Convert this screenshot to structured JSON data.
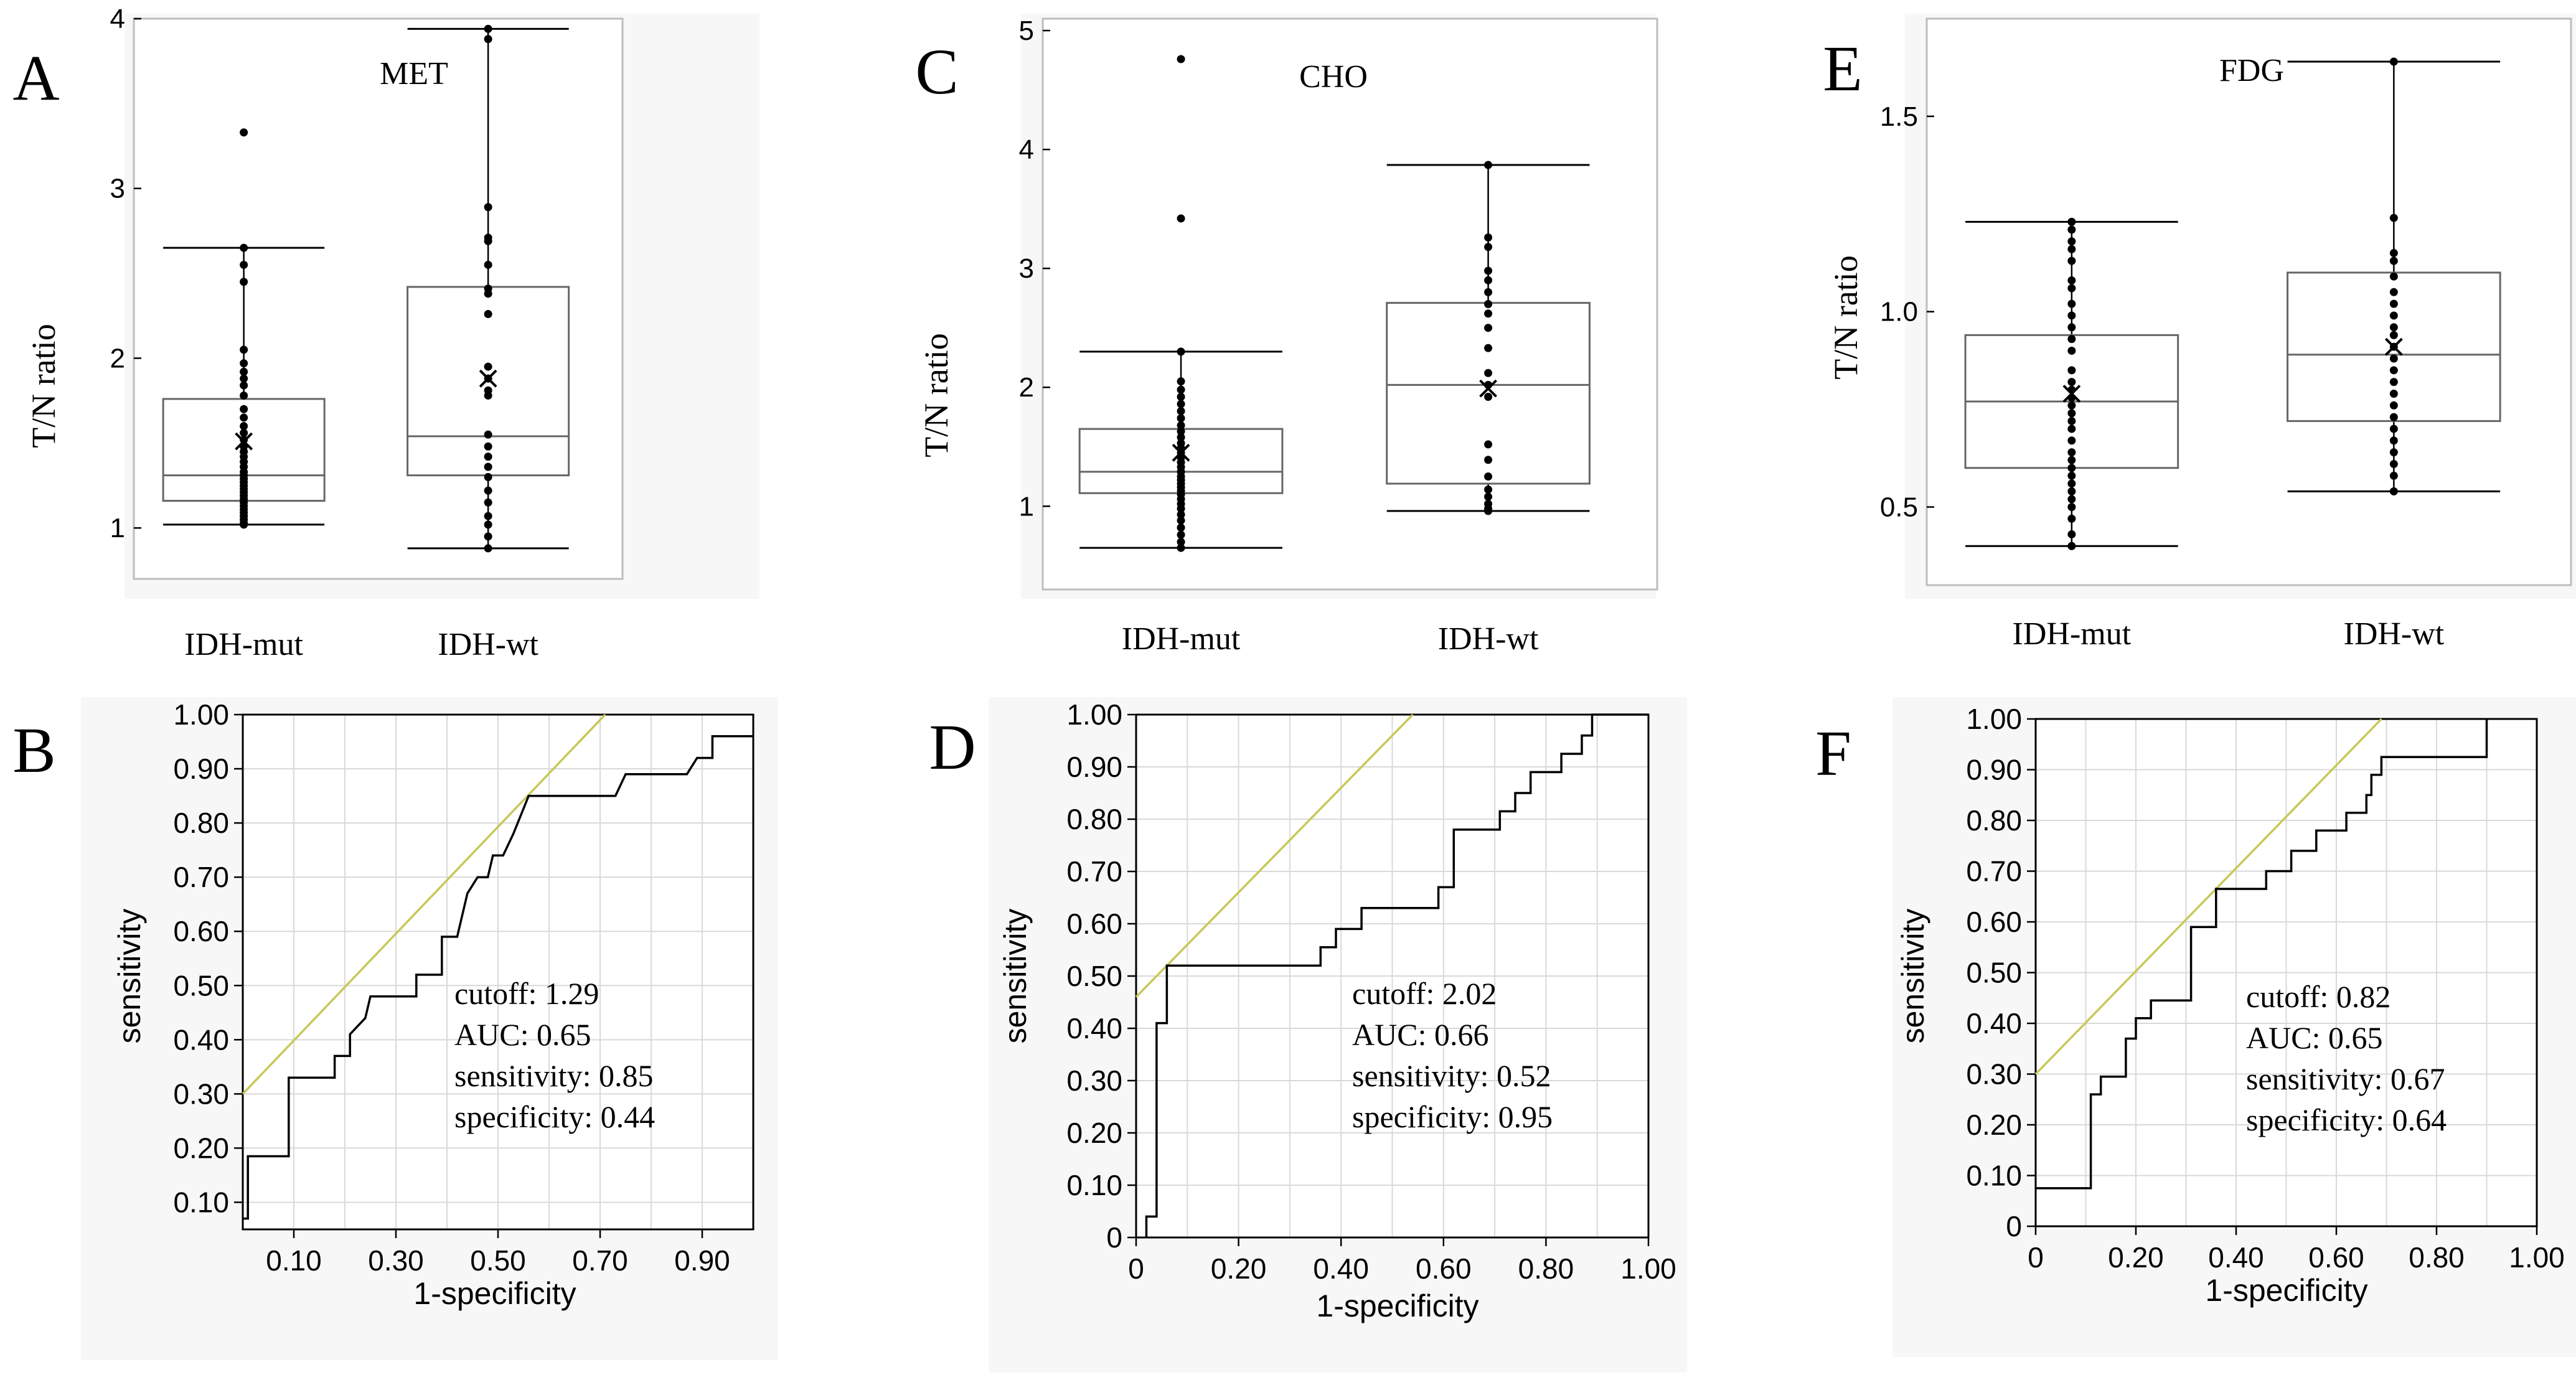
{
  "colors": {
    "panel_bg": "#f7f7f7",
    "plot_bg": "#ffffff",
    "frame": "#bdbdbd",
    "grid": "#d9d9d9",
    "ink": "#000000",
    "reference_line": "#c8c85a",
    "box_frame": "#666666"
  },
  "chart_data": [
    {
      "panel": "A",
      "type": "box",
      "title": "MET",
      "ylabel": "T/N ratio",
      "categories": [
        "IDH-mut",
        "IDH-wt"
      ],
      "ylim": [
        0.7,
        4.0
      ],
      "yticks": [
        "1",
        "2",
        "3",
        "4"
      ],
      "boxes": [
        {
          "name": "IDH-mut",
          "whisker_low": 1.02,
          "q1": 1.16,
          "median": 1.31,
          "q3": 1.76,
          "whisker_high": 2.65,
          "mean": 1.51,
          "points": [
            3.33,
            2.65,
            2.55,
            2.45,
            2.05,
            1.97,
            1.92,
            1.88,
            1.84,
            1.78,
            1.7,
            1.65,
            1.6,
            1.56,
            1.52,
            1.48,
            1.45,
            1.42,
            1.39,
            1.36,
            1.33,
            1.31,
            1.29,
            1.27,
            1.25,
            1.23,
            1.21,
            1.19,
            1.17,
            1.15,
            1.13,
            1.11,
            1.09,
            1.07,
            1.05,
            1.03,
            1.02
          ]
        },
        {
          "name": "IDH-wt",
          "whisker_low": 0.88,
          "q1": 1.31,
          "median": 1.54,
          "q3": 2.42,
          "whisker_high": 3.94,
          "mean": 1.88,
          "points": [
            3.94,
            3.88,
            2.89,
            2.71,
            2.69,
            2.55,
            2.41,
            2.38,
            2.26,
            1.95,
            1.88,
            1.81,
            1.78,
            1.55,
            1.48,
            1.42,
            1.36,
            1.3,
            1.22,
            1.15,
            1.07,
            1.02,
            0.95,
            0.88
          ]
        }
      ]
    },
    {
      "panel": "C",
      "type": "box",
      "title": "CHO",
      "ylabel": "T/N ratio",
      "categories": [
        "IDH-mut",
        "IDH-wt"
      ],
      "ylim": [
        0.3,
        5.1
      ],
      "yticks": [
        "1",
        "2",
        "3",
        "4",
        "5"
      ],
      "boxes": [
        {
          "name": "IDH-mut",
          "whisker_low": 0.65,
          "q1": 1.11,
          "median": 1.29,
          "q3": 1.65,
          "whisker_high": 2.3,
          "mean": 1.45,
          "points": [
            4.76,
            3.42,
            2.3,
            2.05,
            1.98,
            1.92,
            1.86,
            1.8,
            1.74,
            1.68,
            1.63,
            1.58,
            1.53,
            1.49,
            1.45,
            1.41,
            1.37,
            1.33,
            1.29,
            1.25,
            1.22,
            1.19,
            1.16,
            1.13,
            1.1,
            1.06,
            1.02,
            0.98,
            0.93,
            0.88,
            0.82,
            0.76,
            0.7,
            0.65
          ]
        },
        {
          "name": "IDH-wt",
          "whisker_low": 0.96,
          "q1": 1.19,
          "median": 2.02,
          "q3": 2.71,
          "whisker_high": 3.87,
          "mean": 1.99,
          "points": [
            3.87,
            3.26,
            3.18,
            2.98,
            2.9,
            2.8,
            2.7,
            2.62,
            2.5,
            2.33,
            2.12,
            2.02,
            1.92,
            1.52,
            1.39,
            1.25,
            1.14,
            1.08,
            1.02,
            0.98,
            0.96
          ]
        }
      ]
    },
    {
      "panel": "E",
      "type": "box",
      "title": "FDG",
      "ylabel": "T/N ratio",
      "categories": [
        "IDH-mut",
        "IDH-wt"
      ],
      "ylim": [
        0.3,
        1.75
      ],
      "yticks": [
        "0.5",
        "1.0",
        "1.5"
      ],
      "boxes": [
        {
          "name": "IDH-mut",
          "whisker_low": 0.4,
          "q1": 0.6,
          "median": 0.77,
          "q3": 0.94,
          "whisker_high": 1.23,
          "mean": 0.79,
          "points": [
            1.23,
            1.21,
            1.18,
            1.16,
            1.13,
            1.08,
            1.06,
            1.02,
            0.99,
            0.96,
            0.93,
            0.9,
            0.85,
            0.82,
            0.8,
            0.78,
            0.76,
            0.74,
            0.72,
            0.7,
            0.67,
            0.64,
            0.62,
            0.6,
            0.58,
            0.56,
            0.54,
            0.52,
            0.5,
            0.47,
            0.43,
            0.4
          ]
        },
        {
          "name": "IDH-wt",
          "whisker_low": 0.54,
          "q1": 0.72,
          "median": 0.89,
          "q3": 1.1,
          "whisker_high": 1.64,
          "mean": 0.91,
          "points": [
            1.64,
            1.24,
            1.15,
            1.13,
            1.09,
            1.05,
            1.02,
            0.99,
            0.96,
            0.94,
            0.91,
            0.88,
            0.85,
            0.82,
            0.79,
            0.76,
            0.73,
            0.7,
            0.67,
            0.64,
            0.61,
            0.58,
            0.54
          ]
        }
      ]
    },
    {
      "panel": "B",
      "type": "line",
      "xlabel": "1-specificity",
      "ylabel": "sensitivity",
      "xlim": [
        0,
        1
      ],
      "ylim": [
        0.05,
        1.0
      ],
      "xticks": [
        0.1,
        0.3,
        0.5,
        0.7,
        0.9
      ],
      "xtick_labels": [
        "0.10",
        "0.30",
        "0.50",
        "0.70",
        "0.90"
      ],
      "yticks": [
        0.1,
        0.2,
        0.3,
        0.4,
        0.5,
        0.6,
        0.7,
        0.8,
        0.9,
        1.0
      ],
      "ytick_labels": [
        "0.10",
        "0.20",
        "0.30",
        "0.40",
        "0.50",
        "0.60",
        "0.70",
        "0.80",
        "0.90",
        "1.00"
      ],
      "reference_line": [
        [
          0.0,
          0.3
        ],
        [
          0.71,
          1.0
        ]
      ],
      "roc": [
        [
          0.0,
          0.07
        ],
        [
          0.01,
          0.07
        ],
        [
          0.01,
          0.185
        ],
        [
          0.09,
          0.185
        ],
        [
          0.09,
          0.33
        ],
        [
          0.18,
          0.33
        ],
        [
          0.18,
          0.37
        ],
        [
          0.21,
          0.37
        ],
        [
          0.21,
          0.41
        ],
        [
          0.24,
          0.44
        ],
        [
          0.25,
          0.48
        ],
        [
          0.34,
          0.48
        ],
        [
          0.34,
          0.52
        ],
        [
          0.39,
          0.52
        ],
        [
          0.39,
          0.59
        ],
        [
          0.42,
          0.59
        ],
        [
          0.43,
          0.63
        ],
        [
          0.44,
          0.67
        ],
        [
          0.46,
          0.7
        ],
        [
          0.48,
          0.7
        ],
        [
          0.49,
          0.74
        ],
        [
          0.51,
          0.74
        ],
        [
          0.53,
          0.78
        ],
        [
          0.56,
          0.85
        ],
        [
          0.73,
          0.85
        ],
        [
          0.75,
          0.89
        ],
        [
          0.87,
          0.89
        ],
        [
          0.89,
          0.92
        ],
        [
          0.92,
          0.92
        ],
        [
          0.92,
          0.96
        ],
        [
          1.0,
          0.96
        ]
      ],
      "annotations": [
        "cutoff: 1.29",
        "AUC: 0.65",
        "sensitivity: 0.85",
        "specificity: 0.44"
      ]
    },
    {
      "panel": "D",
      "type": "line",
      "xlabel": "1-specificity",
      "ylabel": "sensitivity",
      "xlim": [
        0,
        1
      ],
      "ylim": [
        0,
        1
      ],
      "xticks": [
        0,
        0.2,
        0.4,
        0.6,
        0.8,
        1.0
      ],
      "xtick_labels": [
        "0",
        "0.20",
        "0.40",
        "0.60",
        "0.80",
        "1.00"
      ],
      "yticks": [
        0,
        0.1,
        0.2,
        0.3,
        0.4,
        0.5,
        0.6,
        0.7,
        0.8,
        0.9,
        1.0
      ],
      "ytick_labels": [
        "0",
        "0.10",
        "0.20",
        "0.30",
        "0.40",
        "0.50",
        "0.60",
        "0.70",
        "0.80",
        "0.90",
        "1.00"
      ],
      "reference_line": [
        [
          0.0,
          0.46
        ],
        [
          0.54,
          1.0
        ]
      ],
      "roc": [
        [
          0.02,
          0.0
        ],
        [
          0.02,
          0.04
        ],
        [
          0.04,
          0.04
        ],
        [
          0.04,
          0.41
        ],
        [
          0.06,
          0.41
        ],
        [
          0.06,
          0.52
        ],
        [
          0.36,
          0.52
        ],
        [
          0.36,
          0.555
        ],
        [
          0.39,
          0.555
        ],
        [
          0.39,
          0.59
        ],
        [
          0.44,
          0.59
        ],
        [
          0.44,
          0.63
        ],
        [
          0.59,
          0.63
        ],
        [
          0.59,
          0.67
        ],
        [
          0.62,
          0.67
        ],
        [
          0.62,
          0.78
        ],
        [
          0.71,
          0.78
        ],
        [
          0.71,
          0.815
        ],
        [
          0.74,
          0.815
        ],
        [
          0.74,
          0.85
        ],
        [
          0.77,
          0.85
        ],
        [
          0.77,
          0.89
        ],
        [
          0.83,
          0.89
        ],
        [
          0.83,
          0.925
        ],
        [
          0.87,
          0.925
        ],
        [
          0.87,
          0.96
        ],
        [
          0.89,
          0.96
        ],
        [
          0.89,
          1.0
        ],
        [
          1.0,
          1.0
        ]
      ],
      "annotations": [
        "cutoff: 2.02",
        "AUC: 0.66",
        "sensitivity: 0.52",
        "specificity: 0.95"
      ]
    },
    {
      "panel": "F",
      "type": "line",
      "xlabel": "1-specificity",
      "ylabel": "sensitivity",
      "xlim": [
        0,
        1
      ],
      "ylim": [
        0,
        1
      ],
      "xticks": [
        0,
        0.2,
        0.4,
        0.6,
        0.8,
        1.0
      ],
      "xtick_labels": [
        "0",
        "0.20",
        "0.40",
        "0.60",
        "0.80",
        "1.00"
      ],
      "yticks": [
        0,
        0.1,
        0.2,
        0.3,
        0.4,
        0.5,
        0.6,
        0.7,
        0.8,
        0.9,
        1.0
      ],
      "ytick_labels": [
        "0",
        "0.10",
        "0.20",
        "0.30",
        "0.40",
        "0.50",
        "0.60",
        "0.70",
        "0.80",
        "0.90",
        "1.00"
      ],
      "reference_line": [
        [
          0.0,
          0.3
        ],
        [
          0.69,
          1.0
        ]
      ],
      "roc": [
        [
          0.0,
          0.075
        ],
        [
          0.11,
          0.075
        ],
        [
          0.11,
          0.26
        ],
        [
          0.13,
          0.26
        ],
        [
          0.13,
          0.295
        ],
        [
          0.18,
          0.295
        ],
        [
          0.18,
          0.37
        ],
        [
          0.2,
          0.37
        ],
        [
          0.2,
          0.41
        ],
        [
          0.23,
          0.41
        ],
        [
          0.23,
          0.445
        ],
        [
          0.31,
          0.445
        ],
        [
          0.31,
          0.59
        ],
        [
          0.36,
          0.59
        ],
        [
          0.36,
          0.665
        ],
        [
          0.46,
          0.665
        ],
        [
          0.46,
          0.7
        ],
        [
          0.51,
          0.7
        ],
        [
          0.51,
          0.74
        ],
        [
          0.56,
          0.74
        ],
        [
          0.56,
          0.78
        ],
        [
          0.62,
          0.78
        ],
        [
          0.62,
          0.815
        ],
        [
          0.66,
          0.815
        ],
        [
          0.66,
          0.85
        ],
        [
          0.67,
          0.85
        ],
        [
          0.67,
          0.89
        ],
        [
          0.69,
          0.89
        ],
        [
          0.69,
          0.925
        ],
        [
          0.9,
          0.925
        ],
        [
          0.9,
          1.0
        ]
      ],
      "annotations": [
        "cutoff: 0.82",
        "AUC: 0.65",
        "sensitivity: 0.67",
        "specificity: 0.64"
      ]
    }
  ]
}
